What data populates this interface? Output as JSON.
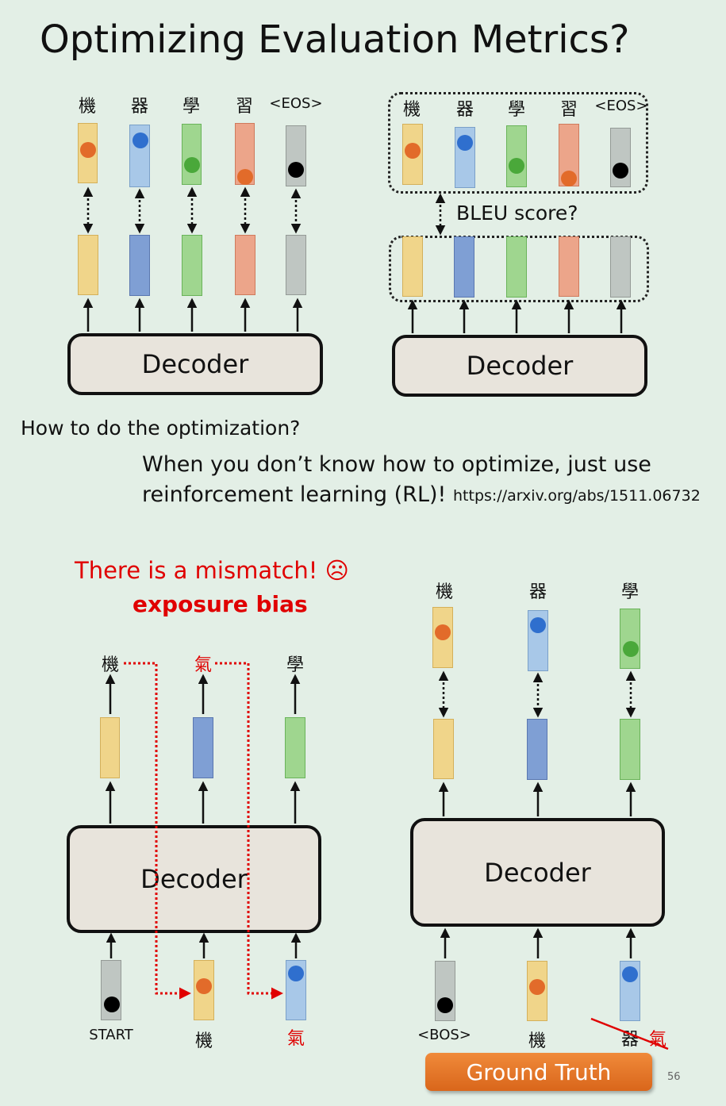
{
  "title": "Optimizing Evaluation Metrics?",
  "tokens_top": [
    "機",
    "器",
    "學",
    "習",
    "<EOS>"
  ],
  "bleu_label": "BLEU score?",
  "decoder_label": "Decoder",
  "question": "How to do the optimization?",
  "rl_line1": "When you don’t know how to optimize, just use",
  "rl_line2": "reinforcement learning (RL)!",
  "rl_link": "https://arxiv.org/abs/1511.06732",
  "mismatch": "There is a mismatch! ☹",
  "exposure_bias": "exposure bias",
  "left_outputs": [
    "機",
    "氣",
    "學"
  ],
  "left_inputs": [
    "START",
    "機",
    "氣"
  ],
  "right_outputs": [
    "機",
    "器",
    "學"
  ],
  "right_inputs": [
    "<BOS>",
    "機",
    "器",
    "氣"
  ],
  "ground_truth": "Ground Truth",
  "page_number": "56",
  "colors": {
    "background": "#e3efe6",
    "highlight_red": "#e00000",
    "ground_truth_orange": "#e7772b"
  }
}
